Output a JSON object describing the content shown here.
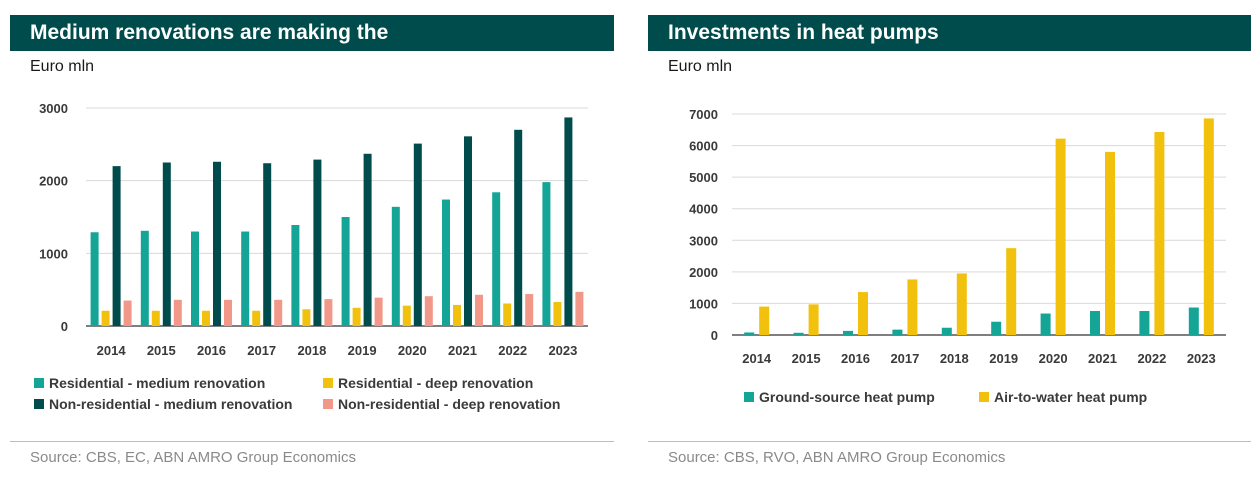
{
  "colors": {
    "header_bg": "#004c4c",
    "header_text": "#ffffff",
    "res_medium": "#14a596",
    "res_deep": "#f2c10e",
    "nonres_medium": "#004c4c",
    "nonres_deep": "#f29888",
    "ground_source": "#14a596",
    "air_to_water": "#f2c10e",
    "gridline": "#d9d9d9",
    "axis": "#555555"
  },
  "left": {
    "title": "Medium renovations are making the",
    "unit": "Euro mln",
    "source": "Source: CBS, EC, ABN AMRO Group Economics"
  },
  "right": {
    "title": "Investments in heat pumps",
    "unit": "Euro mln",
    "source": "Source: CBS, RVO, ABN AMRO Group Economics"
  },
  "chart_data": [
    {
      "type": "bar",
      "title": "Medium renovations are making the",
      "ylabel": "Euro mln",
      "xlabel": "",
      "ylim": [
        0,
        3000
      ],
      "yticks": [
        0,
        1000,
        2000,
        3000
      ],
      "grid": true,
      "legend_position": "bottom",
      "categories": [
        "2014",
        "2015",
        "2016",
        "2017",
        "2018",
        "2019",
        "2020",
        "2021",
        "2022",
        "2023"
      ],
      "series": [
        {
          "name": "Residential - medium renovation",
          "color": "#14a596",
          "values": [
            1290,
            1310,
            1300,
            1300,
            1390,
            1500,
            1640,
            1740,
            1840,
            1980
          ]
        },
        {
          "name": "Residential - deep renovation",
          "color": "#f2c10e",
          "values": [
            210,
            210,
            210,
            210,
            230,
            250,
            280,
            290,
            310,
            330
          ]
        },
        {
          "name": "Non-residential - medium renovation",
          "color": "#004c4c",
          "values": [
            2200,
            2250,
            2260,
            2240,
            2290,
            2370,
            2510,
            2610,
            2700,
            2870
          ]
        },
        {
          "name": "Non-residential - deep renovation",
          "color": "#f29888",
          "values": [
            350,
            360,
            360,
            360,
            370,
            390,
            410,
            430,
            440,
            470
          ]
        }
      ],
      "legend_order": [
        0,
        1,
        2,
        3
      ]
    },
    {
      "type": "bar",
      "title": "Investments in heat pumps",
      "ylabel": "Euro mln",
      "xlabel": "",
      "ylim": [
        0,
        7000
      ],
      "yticks": [
        0,
        1000,
        2000,
        3000,
        4000,
        5000,
        6000,
        7000
      ],
      "grid": true,
      "legend_position": "bottom",
      "categories": [
        "2014",
        "2015",
        "2016",
        "2017",
        "2018",
        "2019",
        "2020",
        "2021",
        "2022",
        "2023"
      ],
      "series": [
        {
          "name": "Ground-source heat pump",
          "color": "#14a596",
          "values": [
            80,
            70,
            130,
            170,
            230,
            420,
            680,
            760,
            760,
            870
          ]
        },
        {
          "name": "Air-to-water heat pump",
          "color": "#f2c10e",
          "values": [
            900,
            970,
            1360,
            1760,
            1950,
            2750,
            6220,
            5800,
            6430,
            6860
          ]
        }
      ]
    }
  ]
}
